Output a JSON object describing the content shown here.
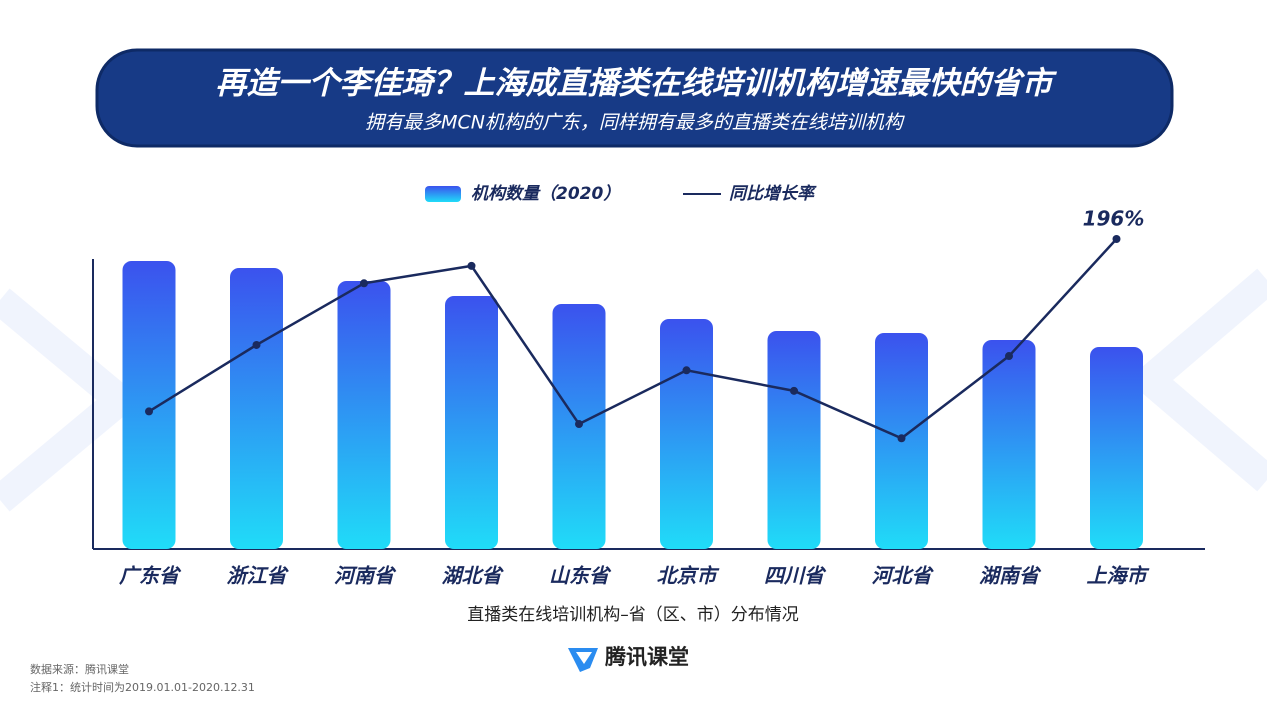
{
  "chart_data": {
    "type": "bar",
    "title": "再造一个李佳琦？上海成直播类在线培训机构增速最快的省市",
    "subtitle": "拥有最多MCN机构的广东，同样拥有最多的直播类在线培训机构",
    "x_label": "直播类在线培训机构–省（区、市）分布情况",
    "categories": [
      "广东省",
      "浙江省",
      "河南省",
      "湖北省",
      "山东省",
      "北京市",
      "四川省",
      "河北省",
      "湖南省",
      "上海市"
    ],
    "series": [
      {
        "name": "机构数量（2020）",
        "type": "bar",
        "color": "#3b52ee",
        "values": [
          288,
          281,
          268,
          253,
          245,
          230,
          218,
          216,
          209,
          202
        ]
      },
      {
        "name": "同比增长率",
        "type": "line",
        "axis": "y2",
        "color": "#1a2a5e",
        "values": [
          87,
          129,
          168,
          179,
          79,
          113,
          100,
          70,
          122,
          196
        ],
        "value_labels": [
          null,
          null,
          null,
          null,
          null,
          null,
          null,
          null,
          null,
          "196%"
        ]
      }
    ],
    "ylim": [
      0,
      310
    ],
    "y2lim": [
      0,
      196
    ],
    "logo": "腾讯课堂",
    "notes": [
      "数据来源：腾讯课堂",
      "注释1：统计时间为2019.01.01-2020.12.31"
    ]
  }
}
